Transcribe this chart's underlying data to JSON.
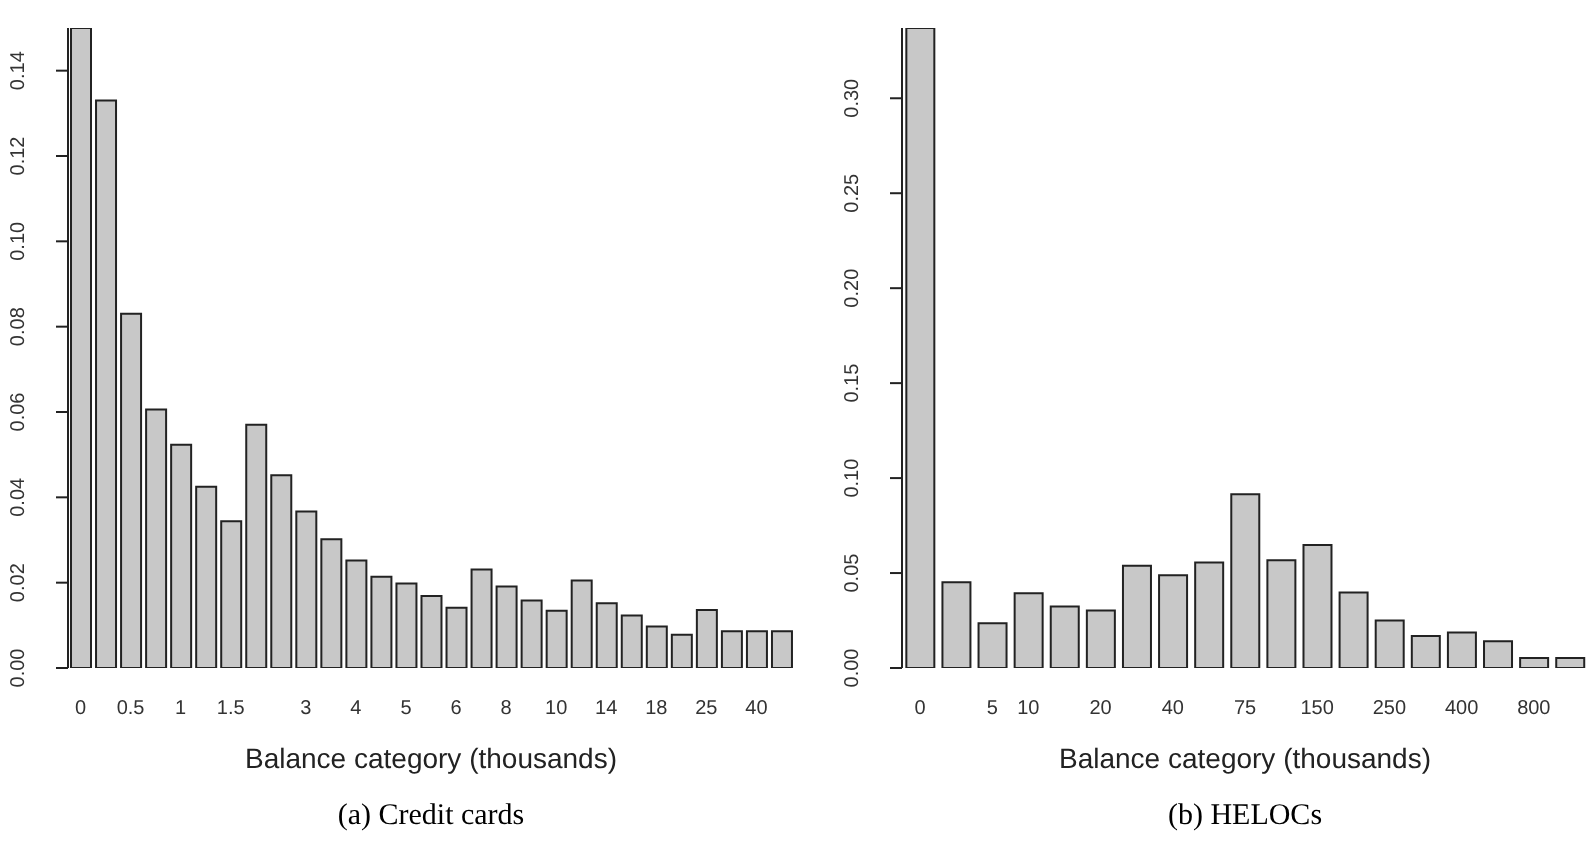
{
  "chart_data": [
    {
      "type": "bar",
      "title": "(a) Credit cards",
      "xlabel": "Balance category (thousands)",
      "categories": [
        "0",
        null,
        "0.5",
        null,
        "1",
        null,
        "1.5",
        null,
        null,
        "3",
        null,
        "4",
        null,
        "5",
        null,
        "6",
        null,
        "8",
        null,
        "10",
        null,
        "14",
        null,
        "18",
        null,
        "25",
        null,
        "40",
        null
      ],
      "values": [
        0.15,
        0.133,
        0.083,
        0.0606,
        0.0523,
        0.0425,
        0.0344,
        0.057,
        0.0452,
        0.0367,
        0.0302,
        0.0252,
        0.0214,
        0.0198,
        0.0169,
        0.0141,
        0.0231,
        0.0191,
        0.0158,
        0.0134,
        0.0205,
        0.0152,
        0.0123,
        0.0097,
        0.0078,
        0.0136,
        0.0086,
        0.0086,
        0.0086
      ],
      "color": "#c8c8c8",
      "ylim": [
        0,
        0.15
      ],
      "yticks": [
        {
          "value": 0,
          "label": "0.00"
        },
        0.02,
        0.04,
        0.06,
        0.08,
        {
          "value": 0.1,
          "label": "0.10"
        },
        0.12,
        0.14
      ],
      "grid": false,
      "legend": false
    },
    {
      "type": "bar",
      "title": "(b) HELOCs",
      "xlabel": "Balance category (thousands)",
      "categories": [
        "0",
        null,
        "5",
        "10",
        null,
        "20",
        null,
        "40",
        null,
        "75",
        null,
        "150",
        null,
        "250",
        null,
        "400",
        null,
        "800",
        null
      ],
      "values": [
        0.337,
        0.0451,
        0.0236,
        0.0394,
        0.0324,
        0.0303,
        0.0539,
        0.0489,
        0.0556,
        0.0915,
        0.0567,
        0.0648,
        0.0398,
        0.025,
        0.0169,
        0.0187,
        0.0141,
        0.0053,
        0.0053
      ],
      "color": "#c8c8c8",
      "ylim": [
        0,
        0.337
      ],
      "yticks": [
        {
          "value": 0,
          "label": "0.00"
        },
        0.05,
        {
          "value": 0.1,
          "label": "0.10"
        },
        0.15,
        {
          "value": 0.2,
          "label": "0.20"
        },
        0.25,
        {
          "value": 0.3,
          "label": "0.30"
        }
      ],
      "grid": false,
      "legend": false
    }
  ]
}
